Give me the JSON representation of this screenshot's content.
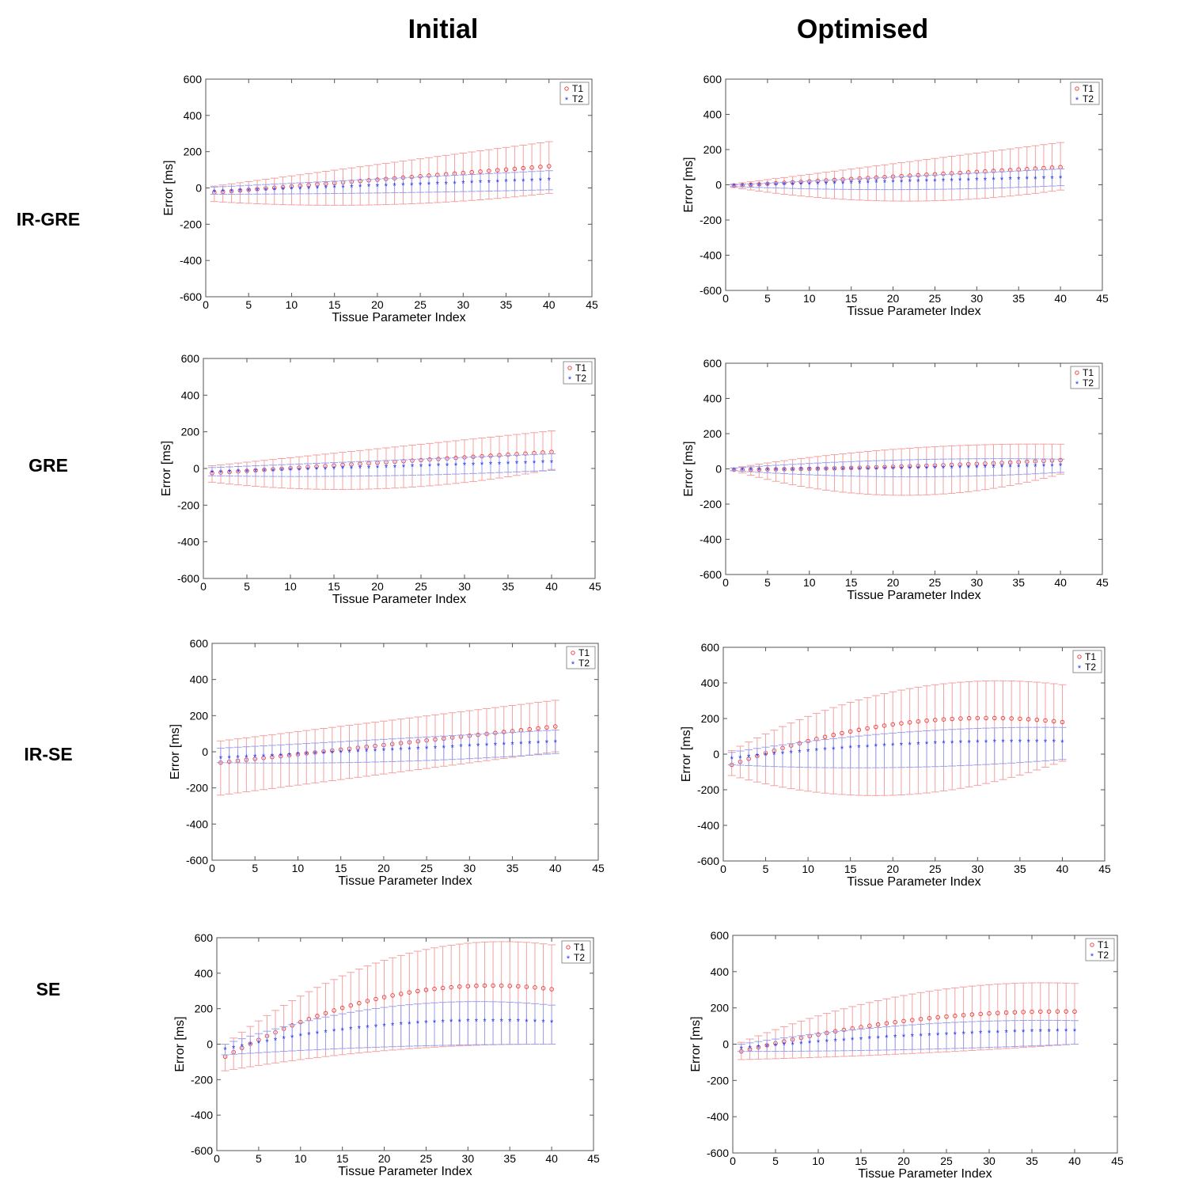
{
  "columns": [
    "Initial",
    "Optimised"
  ],
  "rows": [
    "IR-GRE",
    "GRE",
    "IR-SE",
    "SE"
  ],
  "colors": {
    "T1": "#ee3333",
    "T1_err": "#f4a0a0",
    "T2": "#2233ee",
    "T2_err": "#9aa0ee",
    "axis": "#555555"
  },
  "chart_data": [
    {
      "type": "errorbar",
      "sequence": "IR-GRE",
      "column": "Initial",
      "xlabel": "Tissue Parameter Index",
      "ylabel": "Error [ms]",
      "xlim": [
        0,
        45
      ],
      "ylim": [
        -600,
        600
      ],
      "xticks": [
        0,
        5,
        10,
        15,
        20,
        25,
        30,
        35,
        40,
        45
      ],
      "yticks": [
        -600,
        -400,
        -200,
        0,
        200,
        400,
        600
      ],
      "legend": [
        "T1",
        "T2"
      ],
      "legend_position": "top-right",
      "n": 40,
      "series": [
        {
          "name": "T1",
          "mean_start": -25,
          "mean_end": 120,
          "mean_bulge": 0,
          "upper_start": 10,
          "upper_end": 255,
          "upper_bulge": 0,
          "lower_start": -75,
          "lower_end": -30,
          "lower_bulge": -40
        },
        {
          "name": "T2",
          "mean_start": -20,
          "mean_end": 45,
          "mean_bulge": 0,
          "upper_start": 5,
          "upper_end": 95,
          "upper_bulge": 0,
          "lower_start": -35,
          "lower_end": -10,
          "lower_bulge": -5
        }
      ]
    },
    {
      "type": "errorbar",
      "sequence": "IR-GRE",
      "column": "Optimised",
      "xlabel": "Tissue Parameter Index",
      "ylabel": "Error [ms]",
      "xlim": [
        0,
        45
      ],
      "ylim": [
        -600,
        600
      ],
      "xticks": [
        0,
        5,
        10,
        15,
        20,
        25,
        30,
        35,
        40,
        45
      ],
      "yticks": [
        -600,
        -400,
        -200,
        0,
        200,
        400,
        600
      ],
      "legend": [
        "T1",
        "T2"
      ],
      "legend_position": "top-right",
      "n": 40,
      "series": [
        {
          "name": "T1",
          "mean_start": -5,
          "mean_end": 100,
          "mean_bulge": 0,
          "upper_start": 5,
          "upper_end": 240,
          "upper_bulge": 0,
          "lower_start": -15,
          "lower_end": -30,
          "lower_bulge": -70
        },
        {
          "name": "T2",
          "mean_start": -5,
          "mean_end": 40,
          "mean_bulge": 0,
          "upper_start": 0,
          "upper_end": 90,
          "upper_bulge": 0,
          "lower_start": -10,
          "lower_end": -5,
          "lower_bulge": -20
        }
      ]
    },
    {
      "type": "errorbar",
      "sequence": "GRE",
      "column": "Initial",
      "xlabel": "Tissue Parameter Index",
      "ylabel": "Error [ms]",
      "xlim": [
        0,
        45
      ],
      "ylim": [
        -600,
        600
      ],
      "xticks": [
        0,
        5,
        10,
        15,
        20,
        25,
        30,
        35,
        40,
        45
      ],
      "yticks": [
        -600,
        -400,
        -200,
        0,
        200,
        400,
        600
      ],
      "legend": [
        "T1",
        "T2"
      ],
      "legend_position": "top-right",
      "n": 40,
      "series": [
        {
          "name": "T1",
          "mean_start": -25,
          "mean_end": 90,
          "mean_bulge": 0,
          "upper_start": 15,
          "upper_end": 205,
          "upper_bulge": 0,
          "lower_start": -75,
          "lower_end": -5,
          "lower_bulge": -70
        },
        {
          "name": "T2",
          "mean_start": -20,
          "mean_end": 35,
          "mean_bulge": 0,
          "upper_start": 5,
          "upper_end": 80,
          "upper_bulge": 0,
          "lower_start": -40,
          "lower_end": -10,
          "lower_bulge": -15
        }
      ]
    },
    {
      "type": "errorbar",
      "sequence": "GRE",
      "column": "Optimised",
      "xlabel": "Tissue Parameter Index",
      "ylabel": "Error [ms]",
      "xlim": [
        0,
        45
      ],
      "ylim": [
        -600,
        600
      ],
      "xticks": [
        0,
        5,
        10,
        15,
        20,
        25,
        30,
        35,
        40,
        45
      ],
      "yticks": [
        -600,
        -400,
        -200,
        0,
        200,
        400,
        600
      ],
      "legend": [
        "T1",
        "T2"
      ],
      "legend_position": "top-right",
      "n": 40,
      "series": [
        {
          "name": "T1",
          "mean_start": -5,
          "mean_end": 50,
          "mean_bulge": -10,
          "upper_start": 5,
          "upper_end": 140,
          "upper_bulge": 40,
          "lower_start": -10,
          "lower_end": -30,
          "lower_bulge": -130
        },
        {
          "name": "T2",
          "mean_start": -5,
          "mean_end": 20,
          "mean_bulge": -5,
          "upper_start": 5,
          "upper_end": 55,
          "upper_bulge": 20,
          "lower_start": -10,
          "lower_end": -20,
          "lower_bulge": -30
        }
      ]
    },
    {
      "type": "errorbar",
      "sequence": "IR-SE",
      "column": "Initial",
      "xlabel": "Tissue Parameter Index",
      "ylabel": "Error [ms]",
      "xlim": [
        0,
        45
      ],
      "ylim": [
        -600,
        600
      ],
      "xticks": [
        0,
        5,
        10,
        15,
        20,
        25,
        30,
        35,
        40,
        45
      ],
      "yticks": [
        -600,
        -400,
        -200,
        0,
        200,
        400,
        600
      ],
      "legend": [
        "T1",
        "T2"
      ],
      "legend_position": "top-right",
      "n": 40,
      "series": [
        {
          "name": "T1",
          "mean_start": -60,
          "mean_end": 140,
          "mean_bulge": 0,
          "upper_start": 60,
          "upper_end": 285,
          "upper_bulge": 0,
          "lower_start": -240,
          "lower_end": 0,
          "lower_bulge": 0
        },
        {
          "name": "T2",
          "mean_start": -35,
          "mean_end": 55,
          "mean_bulge": 0,
          "upper_start": 20,
          "upper_end": 120,
          "upper_bulge": 0,
          "lower_start": -60,
          "lower_end": -10,
          "lower_bulge": -20
        }
      ]
    },
    {
      "type": "errorbar",
      "sequence": "IR-SE",
      "column": "Optimised",
      "xlabel": "Tissue Parameter Index",
      "ylabel": "Error [ms]",
      "xlim": [
        0,
        45
      ],
      "ylim": [
        -600,
        600
      ],
      "xticks": [
        0,
        5,
        10,
        15,
        20,
        25,
        30,
        35,
        40,
        45
      ],
      "yticks": [
        -600,
        -400,
        -200,
        0,
        200,
        400,
        600
      ],
      "legend": [
        "T1",
        "T2"
      ],
      "legend_position": "top-right",
      "n": 40,
      "series": [
        {
          "name": "T1",
          "mean_start": -60,
          "mean_end": 180,
          "mean_bulge": 110,
          "upper_start": 20,
          "upper_end": 390,
          "upper_bulge": 150,
          "lower_start": -120,
          "lower_end": -40,
          "lower_bulge": -150
        },
        {
          "name": "T2",
          "mean_start": -25,
          "mean_end": 70,
          "mean_bulge": 30,
          "upper_start": 10,
          "upper_end": 150,
          "upper_bulge": 40,
          "lower_start": -60,
          "lower_end": -30,
          "lower_bulge": -30
        }
      ]
    },
    {
      "type": "errorbar",
      "sequence": "SE",
      "column": "Initial",
      "xlabel": "Tissue Parameter Index",
      "ylabel": "Error [ms]",
      "xlim": [
        0,
        45
      ],
      "ylim": [
        -600,
        600
      ],
      "xticks": [
        0,
        5,
        10,
        15,
        20,
        25,
        30,
        35,
        40,
        45
      ],
      "yticks": [
        -600,
        -400,
        -200,
        0,
        200,
        400,
        600
      ],
      "legend": [
        "T1",
        "T2"
      ],
      "legend_position": "top-right",
      "n": 40,
      "series": [
        {
          "name": "T1",
          "mean_start": -70,
          "mean_end": 310,
          "mean_bulge": 150,
          "upper_start": 0,
          "upper_end": 560,
          "upper_bulge": 200,
          "lower_start": -150,
          "lower_end": 0,
          "lower_bulge": 40
        },
        {
          "name": "T2",
          "mean_start": -30,
          "mean_end": 125,
          "mean_bulge": 60,
          "upper_start": 0,
          "upper_end": 220,
          "upper_bulge": 100,
          "lower_start": -60,
          "lower_end": 0,
          "lower_bulge": 15
        }
      ]
    },
    {
      "type": "errorbar",
      "sequence": "SE",
      "column": "Optimised",
      "xlabel": "Tissue Parameter Index",
      "ylabel": "Error [ms]",
      "xlim": [
        0,
        45
      ],
      "ylim": [
        -600,
        600
      ],
      "xticks": [
        0,
        5,
        10,
        15,
        20,
        25,
        30,
        35,
        40,
        45
      ],
      "yticks": [
        -600,
        -400,
        -200,
        0,
        200,
        400,
        600
      ],
      "legend": [
        "T1",
        "T2"
      ],
      "legend_position": "top-right",
      "n": 40,
      "series": [
        {
          "name": "T1",
          "mean_start": -40,
          "mean_end": 180,
          "mean_bulge": 60,
          "upper_start": 10,
          "upper_end": 335,
          "upper_bulge": 100,
          "lower_start": -85,
          "lower_end": 0,
          "lower_bulge": -10
        },
        {
          "name": "T2",
          "mean_start": -25,
          "mean_end": 75,
          "mean_bulge": 20,
          "upper_start": 0,
          "upper_end": 130,
          "upper_bulge": 40,
          "lower_start": -40,
          "lower_end": 0,
          "lower_bulge": -10
        }
      ]
    }
  ]
}
